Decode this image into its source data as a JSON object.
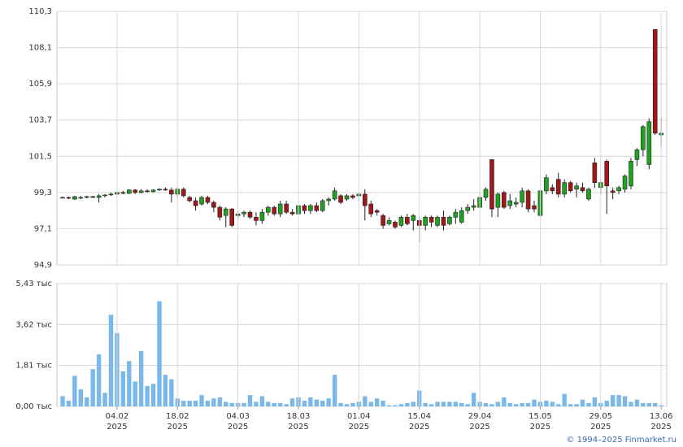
{
  "chart_data": [
    {
      "type": "candlestick",
      "up_color": "#22a022",
      "down_color": "#a01818",
      "ylim": [
        94.9,
        110.3
      ],
      "yticks": [
        {
          "value": 110.3,
          "label": "110,3"
        },
        {
          "value": 108.1,
          "label": "108,1"
        },
        {
          "value": 105.9,
          "label": "105,9"
        },
        {
          "value": 103.7,
          "label": "103,7"
        },
        {
          "value": 101.5,
          "label": "101,5"
        },
        {
          "value": 99.3,
          "label": "99,3"
        },
        {
          "value": 97.1,
          "label": "97,1"
        },
        {
          "value": 94.9,
          "label": "94,9"
        }
      ],
      "grid": true,
      "open": [
        99.0,
        99.0,
        98.9,
        99.0,
        99.0,
        99.05,
        99.0,
        99.1,
        99.15,
        99.2,
        99.3,
        99.25,
        99.45,
        99.3,
        99.4,
        99.35,
        99.45,
        99.5,
        99.45,
        99.2,
        99.5,
        99.0,
        98.8,
        98.6,
        99.0,
        98.7,
        98.4,
        97.9,
        98.3,
        97.9,
        98.0,
        98.1,
        97.8,
        97.6,
        98.1,
        98.4,
        98.0,
        98.6,
        98.1,
        98.0,
        98.5,
        98.2,
        98.5,
        98.2,
        98.8,
        98.9,
        99.1,
        98.9,
        99.1,
        99.1,
        99.2,
        98.6,
        98.2,
        97.9,
        97.4,
        97.5,
        97.3,
        97.8,
        97.6,
        97.6,
        97.3,
        97.8,
        97.3,
        97.8,
        97.4,
        97.8,
        97.5,
        98.2,
        98.4,
        98.4,
        99.0,
        101.3,
        98.4,
        99.3,
        98.5,
        98.6,
        98.7,
        99.4,
        98.5,
        97.9,
        99.4,
        99.6,
        100.1,
        99.2,
        99.9,
        99.5,
        99.6,
        98.9,
        101.1,
        99.6,
        101.2,
        99.4,
        99.4,
        99.5,
        99.7,
        101.3,
        101.9,
        101.0,
        109.2,
        102.8
      ],
      "high": [
        99.05,
        99.05,
        99.1,
        99.1,
        99.1,
        99.1,
        99.2,
        99.2,
        99.3,
        99.35,
        99.4,
        99.5,
        99.5,
        99.5,
        99.5,
        99.5,
        99.55,
        99.6,
        99.6,
        99.6,
        99.6,
        99.1,
        99.0,
        99.1,
        99.1,
        98.8,
        98.5,
        98.4,
        98.35,
        98.2,
        98.2,
        98.2,
        98.1,
        98.3,
        98.5,
        98.5,
        98.8,
        98.8,
        98.3,
        98.6,
        98.6,
        98.6,
        98.7,
        98.9,
        99.0,
        99.6,
        99.2,
        99.2,
        99.2,
        99.3,
        99.5,
        98.8,
        98.3,
        98.0,
        97.8,
        97.6,
        97.9,
        98.0,
        98.0,
        97.8,
        97.9,
        97.9,
        97.9,
        98.2,
        97.9,
        98.3,
        98.4,
        98.6,
        98.9,
        99.3,
        99.6,
        101.3,
        99.3,
        99.4,
        99.2,
        99.0,
        99.6,
        99.5,
        98.8,
        99.5,
        100.4,
        99.8,
        100.5,
        100.1,
        100.0,
        99.9,
        99.9,
        99.6,
        101.4,
        100.0,
        101.3,
        99.6,
        99.7,
        100.4,
        101.4,
        102.0,
        103.4,
        103.8,
        109.2,
        103.9
      ],
      "low": [
        98.95,
        98.9,
        98.85,
        98.9,
        98.95,
        99.0,
        98.7,
        99.0,
        99.1,
        99.15,
        99.2,
        99.2,
        99.2,
        99.25,
        99.3,
        99.3,
        99.4,
        99.4,
        98.7,
        99.0,
        99.0,
        98.7,
        98.2,
        98.5,
        98.6,
        98.1,
        97.6,
        97.2,
        97.2,
        97.7,
        97.8,
        97.7,
        97.3,
        97.4,
        97.9,
        97.9,
        97.8,
        98.0,
        97.9,
        97.6,
        98.0,
        98.0,
        98.1,
        98.1,
        98.5,
        98.8,
        98.6,
        98.8,
        98.9,
        98.8,
        97.6,
        97.8,
        97.9,
        97.1,
        97.3,
        97.1,
        97.2,
        97.3,
        97.0,
        96.3,
        97.0,
        97.2,
        97.2,
        97.0,
        97.3,
        97.4,
        97.4,
        98.0,
        98.2,
        98.3,
        98.8,
        97.8,
        97.8,
        98.3,
        98.3,
        98.4,
        98.4,
        98.1,
        98.1,
        97.8,
        99.2,
        99.2,
        99.0,
        99.0,
        99.3,
        99.0,
        99.3,
        98.8,
        99.6,
        99.2,
        98.0,
        98.9,
        99.2,
        99.3,
        99.5,
        100.9,
        101.5,
        100.7,
        102.8,
        102.1
      ],
      "close": [
        99.0,
        98.95,
        99.05,
        99.0,
        99.05,
        99.0,
        99.1,
        99.15,
        99.2,
        99.3,
        99.25,
        99.45,
        99.3,
        99.4,
        99.35,
        99.45,
        99.5,
        99.45,
        99.2,
        99.5,
        99.1,
        98.8,
        98.5,
        99.0,
        98.7,
        98.4,
        97.8,
        98.3,
        97.3,
        98.0,
        98.1,
        97.8,
        97.6,
        98.1,
        98.4,
        98.0,
        98.6,
        98.1,
        98.0,
        98.5,
        98.2,
        98.5,
        98.2,
        98.8,
        98.9,
        99.4,
        98.7,
        99.1,
        99.0,
        99.2,
        98.5,
        98.0,
        98.1,
        97.3,
        97.6,
        97.2,
        97.8,
        97.4,
        97.9,
        97.3,
        97.8,
        97.5,
        97.8,
        97.3,
        97.8,
        98.1,
        98.2,
        98.4,
        98.5,
        99.0,
        99.5,
        98.3,
        99.2,
        98.4,
        98.8,
        98.7,
        99.4,
        98.3,
        98.3,
        99.4,
        100.2,
        99.4,
        99.2,
        99.9,
        99.4,
        99.7,
        99.4,
        99.5,
        99.9,
        99.9,
        99.7,
        99.3,
        99.6,
        100.3,
        101.2,
        101.9,
        103.3,
        103.6,
        102.9,
        102.9
      ]
    },
    {
      "type": "bar",
      "color": "#7ab8ec",
      "ylim": [
        0,
        5.43
      ],
      "yticks": [
        {
          "value": 5.43,
          "label": "5,43 тыс"
        },
        {
          "value": 3.62,
          "label": "3,62 тыс"
        },
        {
          "value": 1.81,
          "label": "1,81 тыс"
        },
        {
          "value": 0,
          "label": "0,00 тыс"
        }
      ],
      "grid": true,
      "categories": [
        null,
        null,
        null,
        null,
        null,
        null,
        null,
        null,
        null,
        "04.02\n2025",
        null,
        null,
        null,
        null,
        null,
        null,
        null,
        null,
        null,
        "18.02\n2025",
        null,
        null,
        null,
        null,
        null,
        null,
        null,
        null,
        null,
        "04.03\n2025",
        null,
        null,
        null,
        null,
        null,
        null,
        null,
        null,
        null,
        "18.03\n2025",
        null,
        null,
        null,
        null,
        null,
        null,
        null,
        null,
        null,
        "01.04\n2025",
        null,
        null,
        null,
        null,
        null,
        null,
        null,
        null,
        null,
        "15.04\n2025",
        null,
        null,
        null,
        null,
        null,
        null,
        null,
        null,
        null,
        "29.04\n2025",
        null,
        null,
        null,
        null,
        null,
        null,
        null,
        null,
        null,
        "15.05\n2025",
        null,
        null,
        null,
        null,
        null,
        null,
        null,
        null,
        null,
        "29.05\n2025",
        null,
        null,
        null,
        null,
        null,
        null,
        null,
        null,
        null,
        "13.06\n2025"
      ],
      "values": [
        0.45,
        0.25,
        1.35,
        0.75,
        0.4,
        1.65,
        2.3,
        0.6,
        4.05,
        3.25,
        1.55,
        2.0,
        1.1,
        2.45,
        0.9,
        1.0,
        4.65,
        1.4,
        1.2,
        0.35,
        0.25,
        0.25,
        0.25,
        0.5,
        0.25,
        0.35,
        0.4,
        0.2,
        0.15,
        0.15,
        0.15,
        0.5,
        0.2,
        0.45,
        0.2,
        0.15,
        0.15,
        0.1,
        0.35,
        0.4,
        0.25,
        0.4,
        0.3,
        0.25,
        0.35,
        1.4,
        0.15,
        0.1,
        0.15,
        0.2,
        0.45,
        0.2,
        0.35,
        0.25,
        0.05,
        0.05,
        0.1,
        0.15,
        0.2,
        0.7,
        0.15,
        0.1,
        0.2,
        0.2,
        0.2,
        0.2,
        0.15,
        0.1,
        0.6,
        0.2,
        0.15,
        0.1,
        0.2,
        0.4,
        0.15,
        0.1,
        0.15,
        0.15,
        0.3,
        0.2,
        0.25,
        0.2,
        0.1,
        0.55,
        0.1,
        0.1,
        0.3,
        0.15,
        0.4,
        0.15,
        0.25,
        0.5,
        0.5,
        0.45,
        0.2,
        0.3,
        0.15,
        0.15,
        0.15,
        0.05
      ]
    }
  ],
  "footer": "© 1994–2025 Finmarket.ru"
}
